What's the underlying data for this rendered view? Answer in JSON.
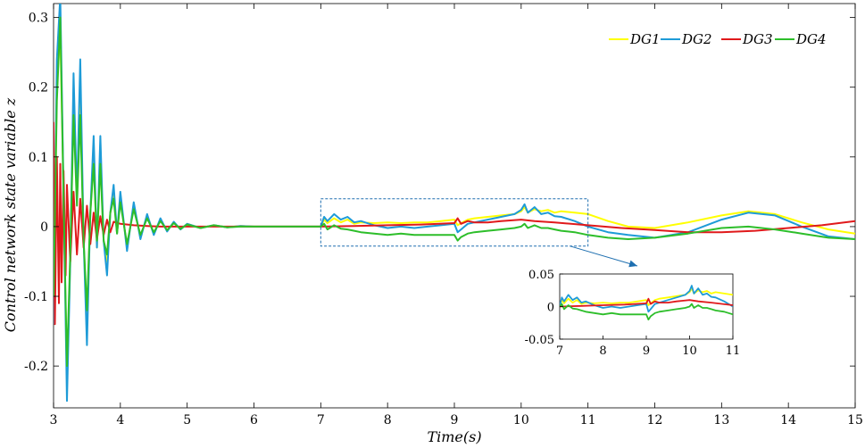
{
  "chart_data": {
    "type": "line",
    "xlabel": "Time(s)",
    "ylabel": "Control network state variable z",
    "xlim": [
      3,
      15
    ],
    "ylim": [
      -0.26,
      0.32
    ],
    "xticks": [
      "3",
      "4",
      "5",
      "6",
      "7",
      "8",
      "9",
      "10",
      "11",
      "12",
      "13",
      "14",
      "15"
    ],
    "yticks": [
      "0.3",
      "0.2",
      "0.1",
      "0",
      "-0.1",
      "-0.2"
    ],
    "legend_position": "top-right",
    "grid": false,
    "series": [
      {
        "name": "DG1",
        "color": "#FFFF00",
        "x": [
          3.0,
          3.05,
          3.1,
          3.15,
          3.2,
          3.25,
          3.3,
          3.35,
          3.4,
          3.45,
          3.5,
          3.55,
          3.6,
          3.65,
          3.7,
          3.75,
          3.8,
          3.85,
          3.9,
          3.95,
          4.0,
          4.1,
          4.2,
          4.3,
          4.4,
          4.5,
          4.6,
          4.7,
          4.8,
          4.9,
          5.0,
          5.2,
          5.4,
          5.6,
          5.8,
          6.0,
          6.5,
          7.0,
          7.05,
          7.1,
          7.2,
          7.3,
          7.4,
          7.5,
          7.6,
          7.8,
          8.0,
          8.2,
          8.4,
          8.6,
          8.8,
          9.0,
          9.05,
          9.1,
          9.2,
          9.3,
          9.5,
          9.7,
          9.9,
          10.0,
          10.05,
          10.1,
          10.2,
          10.3,
          10.4,
          10.5,
          10.6,
          10.8,
          11.0,
          11.3,
          11.6,
          12.0,
          12.5,
          13.0,
          13.4,
          13.8,
          14.2,
          14.6,
          15.0
        ],
        "y": [
          -0.12,
          0.2,
          0.28,
          0.05,
          -0.22,
          -0.05,
          0.19,
          0.04,
          0.2,
          -0.02,
          -0.14,
          0.02,
          0.1,
          -0.03,
          0.1,
          -0.02,
          -0.05,
          0.02,
          0.05,
          -0.01,
          0.04,
          -0.03,
          0.03,
          -0.015,
          0.015,
          -0.01,
          0.01,
          -0.006,
          0.006,
          -0.004,
          0.004,
          -0.002,
          0.002,
          -0.001,
          0.001,
          0.0,
          0.0,
          0.0,
          0.01,
          0.005,
          0.012,
          0.006,
          0.01,
          0.004,
          0.006,
          0.005,
          0.006,
          0.005,
          0.006,
          0.006,
          0.008,
          0.01,
          0.002,
          0.005,
          0.01,
          0.012,
          0.014,
          0.016,
          0.018,
          0.022,
          0.028,
          0.02,
          0.025,
          0.022,
          0.024,
          0.02,
          0.022,
          0.02,
          0.018,
          0.008,
          0.0,
          -0.002,
          0.006,
          0.016,
          0.022,
          0.018,
          0.006,
          -0.004,
          -0.01
        ]
      },
      {
        "name": "DG2",
        "color": "#1E9BD7",
        "x": [
          3.0,
          3.05,
          3.1,
          3.15,
          3.2,
          3.25,
          3.3,
          3.35,
          3.4,
          3.45,
          3.5,
          3.55,
          3.6,
          3.65,
          3.7,
          3.75,
          3.8,
          3.85,
          3.9,
          3.95,
          4.0,
          4.1,
          4.2,
          4.3,
          4.4,
          4.5,
          4.6,
          4.7,
          4.8,
          4.9,
          5.0,
          5.2,
          5.4,
          5.6,
          5.8,
          6.0,
          6.5,
          7.0,
          7.05,
          7.1,
          7.2,
          7.3,
          7.4,
          7.5,
          7.6,
          7.8,
          8.0,
          8.2,
          8.4,
          8.6,
          8.8,
          9.0,
          9.05,
          9.1,
          9.2,
          9.3,
          9.5,
          9.7,
          9.9,
          10.0,
          10.05,
          10.1,
          10.2,
          10.3,
          10.4,
          10.5,
          10.6,
          10.8,
          11.0,
          11.3,
          11.6,
          12.0,
          12.5,
          13.0,
          13.4,
          13.8,
          14.2,
          14.6,
          15.0
        ],
        "y": [
          -0.14,
          0.24,
          0.33,
          0.05,
          -0.25,
          -0.05,
          0.22,
          0.04,
          0.24,
          -0.02,
          -0.17,
          0.02,
          0.13,
          -0.03,
          0.13,
          -0.02,
          -0.07,
          0.02,
          0.06,
          -0.01,
          0.05,
          -0.035,
          0.035,
          -0.018,
          0.018,
          -0.012,
          0.012,
          -0.007,
          0.007,
          -0.004,
          0.004,
          -0.002,
          0.002,
          -0.001,
          0.001,
          0.0,
          0.0,
          0.0,
          0.014,
          0.008,
          0.018,
          0.01,
          0.014,
          0.006,
          0.008,
          0.002,
          -0.002,
          0.0,
          -0.002,
          0.0,
          0.002,
          0.004,
          -0.008,
          -0.004,
          0.004,
          0.006,
          0.01,
          0.014,
          0.018,
          0.024,
          0.032,
          0.02,
          0.028,
          0.018,
          0.02,
          0.015,
          0.014,
          0.008,
          0.0,
          -0.008,
          -0.012,
          -0.016,
          -0.008,
          0.01,
          0.02,
          0.016,
          0.0,
          -0.014,
          -0.018
        ]
      },
      {
        "name": "DG3",
        "color": "#E0191B",
        "x": [
          3.0,
          3.02,
          3.05,
          3.08,
          3.1,
          3.12,
          3.15,
          3.18,
          3.2,
          3.25,
          3.3,
          3.35,
          3.4,
          3.45,
          3.5,
          3.55,
          3.6,
          3.65,
          3.7,
          3.75,
          3.8,
          3.85,
          3.9,
          4.0,
          4.2,
          4.4,
          4.6,
          4.8,
          5.0,
          5.5,
          6.0,
          7.0,
          7.5,
          8.0,
          8.5,
          9.0,
          9.05,
          9.1,
          9.2,
          9.3,
          9.5,
          9.7,
          10.0,
          10.2,
          10.5,
          11.0,
          11.5,
          12.0,
          12.5,
          13.0,
          13.5,
          14.0,
          14.5,
          15.0
        ],
        "y": [
          0.15,
          -0.14,
          0.1,
          -0.11,
          0.09,
          -0.08,
          0.08,
          -0.07,
          0.06,
          -0.05,
          0.05,
          -0.04,
          0.04,
          -0.03,
          0.03,
          -0.025,
          0.02,
          -0.018,
          0.015,
          -0.012,
          0.01,
          -0.008,
          0.007,
          0.004,
          0.002,
          0.001,
          0.0,
          0.0,
          0.0,
          0.0,
          0.0,
          0.0,
          0.001,
          0.002,
          0.003,
          0.005,
          0.012,
          0.004,
          0.008,
          0.006,
          0.006,
          0.008,
          0.01,
          0.008,
          0.006,
          0.002,
          -0.002,
          -0.005,
          -0.008,
          -0.008,
          -0.006,
          -0.002,
          0.002,
          0.008
        ]
      },
      {
        "name": "DG4",
        "color": "#2DBE2A",
        "x": [
          3.0,
          3.05,
          3.1,
          3.15,
          3.2,
          3.25,
          3.3,
          3.35,
          3.4,
          3.45,
          3.5,
          3.55,
          3.6,
          3.65,
          3.7,
          3.75,
          3.8,
          3.85,
          3.9,
          3.95,
          4.0,
          4.1,
          4.2,
          4.3,
          4.4,
          4.5,
          4.6,
          4.7,
          4.8,
          4.9,
          5.0,
          5.2,
          5.4,
          5.6,
          5.8,
          6.0,
          6.5,
          7.0,
          7.05,
          7.1,
          7.2,
          7.3,
          7.4,
          7.5,
          7.6,
          7.8,
          8.0,
          8.2,
          8.4,
          8.6,
          8.8,
          9.0,
          9.05,
          9.1,
          9.2,
          9.3,
          9.5,
          9.7,
          9.9,
          10.0,
          10.05,
          10.1,
          10.2,
          10.3,
          10.4,
          10.5,
          10.6,
          10.8,
          11.0,
          11.3,
          11.6,
          12.0,
          12.5,
          13.0,
          13.4,
          13.8,
          14.2,
          14.6,
          15.0
        ],
        "y": [
          -0.1,
          0.18,
          0.3,
          0.04,
          -0.2,
          -0.04,
          0.16,
          0.03,
          0.16,
          -0.02,
          -0.12,
          0.02,
          0.09,
          -0.02,
          0.09,
          -0.02,
          -0.04,
          0.02,
          0.04,
          -0.01,
          0.035,
          -0.025,
          0.025,
          -0.012,
          0.012,
          -0.008,
          0.008,
          -0.005,
          0.005,
          -0.003,
          0.003,
          -0.002,
          0.002,
          -0.001,
          0.0,
          0.0,
          0.0,
          0.0,
          0.004,
          -0.004,
          0.002,
          -0.003,
          -0.004,
          -0.006,
          -0.008,
          -0.01,
          -0.012,
          -0.01,
          -0.012,
          -0.012,
          -0.012,
          -0.012,
          -0.02,
          -0.015,
          -0.01,
          -0.008,
          -0.006,
          -0.004,
          -0.002,
          0.0,
          0.004,
          -0.002,
          0.002,
          -0.002,
          -0.002,
          -0.004,
          -0.006,
          -0.008,
          -0.012,
          -0.016,
          -0.018,
          -0.016,
          -0.01,
          -0.002,
          0.0,
          -0.004,
          -0.01,
          -0.016,
          -0.018
        ]
      }
    ],
    "inset": {
      "xlim": [
        7,
        11
      ],
      "ylim": [
        -0.05,
        0.05
      ],
      "xticks": [
        "7",
        "8",
        "9",
        "10",
        "11"
      ],
      "yticks": [
        "0.05",
        "0",
        "-0.05"
      ]
    }
  }
}
